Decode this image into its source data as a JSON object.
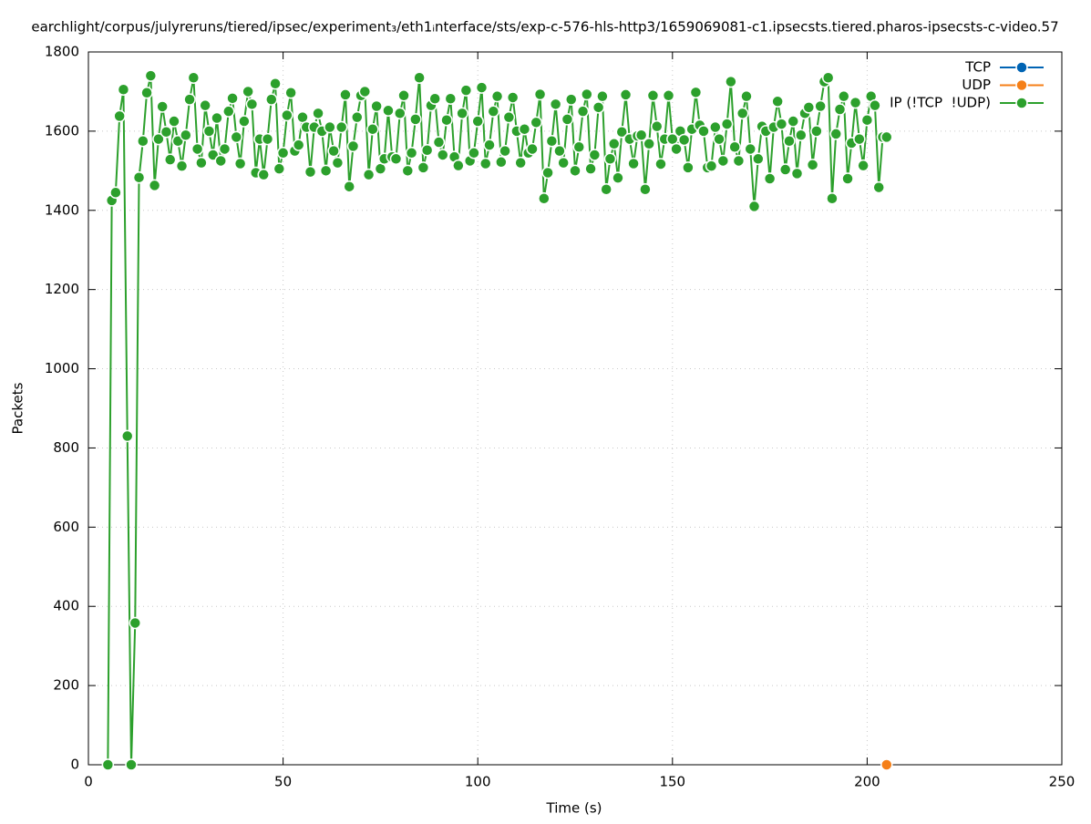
{
  "chart_data": {
    "type": "line",
    "title": "earchlight/corpus/julyreruns/tiered/ipsec/experiment₃/eth1ᵢnterface/sts/exp-c-576-hls-http3/1659069081-c1.ipsecsts.tiered.pharos-ipsecsts-c-video.57",
    "x_label": "Time (s)",
    "y_label": "Packets",
    "xlim": [
      0,
      250
    ],
    "xticks": [
      0,
      50,
      100,
      150,
      200,
      250
    ],
    "ylim": [
      0,
      1800
    ],
    "yticks": [
      0,
      200,
      400,
      600,
      800,
      1000,
      1200,
      1400,
      1600,
      1800
    ],
    "grid": true,
    "legend": "top-right",
    "series": [
      {
        "name": "TCP",
        "color": "#0064b4",
        "x": [],
        "values": []
      },
      {
        "name": "UDP",
        "color": "#f57f17",
        "x": [
          205
        ],
        "values": [
          0
        ]
      },
      {
        "name": "IP (!TCP  !UDP)",
        "color": "#2ca02c",
        "x": [
          5,
          6,
          7,
          8,
          9,
          10,
          11,
          12,
          13,
          14,
          15,
          16,
          17,
          18,
          19,
          20,
          21,
          22,
          23,
          24,
          25,
          26,
          27,
          28,
          29,
          30,
          31,
          32,
          33,
          34,
          35,
          36,
          37,
          38,
          39,
          40,
          41,
          42,
          43,
          44,
          45,
          46,
          47,
          48,
          49,
          50,
          51,
          52,
          53,
          54,
          55,
          56,
          57,
          58,
          59,
          60,
          61,
          62,
          63,
          64,
          65,
          66,
          67,
          68,
          69,
          70,
          71,
          72,
          73,
          74,
          75,
          76,
          77,
          78,
          79,
          80,
          81,
          82,
          83,
          84,
          85,
          86,
          87,
          88,
          89,
          90,
          91,
          92,
          93,
          94,
          95,
          96,
          97,
          98,
          99,
          100,
          101,
          102,
          103,
          104,
          105,
          106,
          107,
          108,
          109,
          110,
          111,
          112,
          113,
          114,
          115,
          116,
          117,
          118,
          119,
          120,
          121,
          122,
          123,
          124,
          125,
          126,
          127,
          128,
          129,
          130,
          131,
          132,
          133,
          134,
          135,
          136,
          137,
          138,
          139,
          140,
          141,
          142,
          143,
          144,
          145,
          146,
          147,
          148,
          149,
          150,
          151,
          152,
          153,
          154,
          155,
          156,
          157,
          158,
          159,
          160,
          161,
          162,
          163,
          164,
          165,
          166,
          167,
          168,
          169,
          170,
          171,
          172,
          173,
          174,
          175,
          176,
          177,
          178,
          179,
          180,
          181,
          182,
          183,
          184,
          185,
          186,
          187,
          188,
          189,
          190,
          191,
          192,
          193,
          194,
          195,
          196,
          197,
          198,
          199,
          200,
          201,
          202,
          203,
          204,
          205
        ],
        "values": [
          0,
          1425,
          1445,
          1638,
          1705,
          830,
          0,
          358,
          1483,
          1575,
          1697,
          1740,
          1463,
          1580,
          1662,
          1598,
          1528,
          1625,
          1575,
          1512,
          1590,
          1680,
          1735,
          1555,
          1520,
          1665,
          1600,
          1540,
          1633,
          1525,
          1555,
          1650,
          1683,
          1585,
          1518,
          1625,
          1700,
          1668,
          1495,
          1580,
          1490,
          1580,
          1680,
          1720,
          1505,
          1545,
          1640,
          1697,
          1550,
          1565,
          1635,
          1610,
          1497,
          1610,
          1645,
          1600,
          1500,
          1610,
          1550,
          1520,
          1610,
          1692,
          1460,
          1562,
          1635,
          1690,
          1700,
          1490,
          1605,
          1663,
          1505,
          1530,
          1652,
          1535,
          1530,
          1645,
          1690,
          1500,
          1545,
          1630,
          1735,
          1508,
          1552,
          1665,
          1682,
          1572,
          1540,
          1628,
          1682,
          1535,
          1513,
          1645,
          1703,
          1525,
          1545,
          1625,
          1710,
          1518,
          1565,
          1650,
          1688,
          1522,
          1550,
          1635,
          1685,
          1600,
          1520,
          1605,
          1545,
          1555,
          1622,
          1693,
          1430,
          1495,
          1575,
          1668,
          1550,
          1520,
          1630,
          1680,
          1500,
          1560,
          1650,
          1693,
          1505,
          1540,
          1660,
          1688,
          1453,
          1530,
          1568,
          1482,
          1598,
          1692,
          1580,
          1518,
          1588,
          1590,
          1453,
          1568,
          1690,
          1612,
          1517,
          1580,
          1690,
          1580,
          1555,
          1600,
          1578,
          1508,
          1605,
          1698,
          1615,
          1600,
          1508,
          1512,
          1610,
          1580,
          1525,
          1618,
          1725,
          1560,
          1525,
          1645,
          1688,
          1555,
          1410,
          1530,
          1612,
          1600,
          1480,
          1610,
          1675,
          1618,
          1503,
          1575,
          1625,
          1493,
          1590,
          1645,
          1660,
          1515,
          1600,
          1663,
          1725,
          1735,
          1430,
          1593,
          1655,
          1688,
          1480,
          1570,
          1672,
          1580,
          1513,
          1628,
          1688,
          1665,
          1458,
          1585,
          1585
        ]
      }
    ]
  }
}
